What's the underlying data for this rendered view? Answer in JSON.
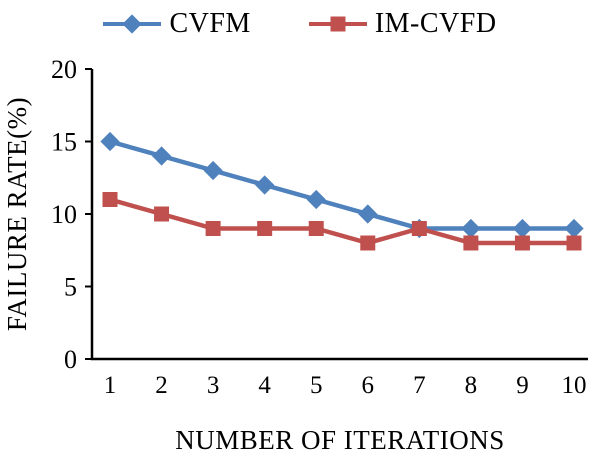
{
  "chart_data": {
    "type": "line",
    "x": [
      1,
      2,
      3,
      4,
      5,
      6,
      7,
      8,
      9,
      10
    ],
    "xlabel": "NUMBER OF ITERATIONS",
    "ylabel": "FAILURE RATE(%)",
    "ylim": [
      0,
      20
    ],
    "yticks": [
      0,
      5,
      10,
      15,
      20
    ],
    "grid": false,
    "legend_position": "top",
    "axis_color": "#000000",
    "series": [
      {
        "name": "CVFM",
        "marker": "diamond",
        "color": "#4F81BD",
        "values": [
          15,
          14,
          13,
          12,
          11,
          10,
          9,
          9,
          9,
          9
        ]
      },
      {
        "name": "IM-CVFD",
        "marker": "square",
        "color": "#C0504D",
        "values": [
          11,
          10,
          9,
          9,
          9,
          8,
          9,
          8,
          8,
          8
        ]
      }
    ]
  }
}
